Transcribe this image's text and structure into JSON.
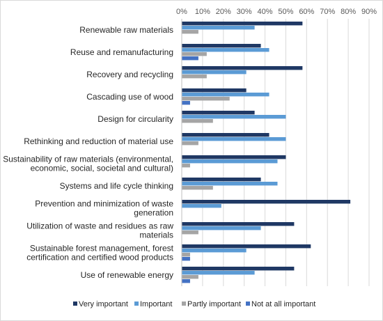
{
  "chart_data": {
    "type": "bar",
    "orientation": "horizontal",
    "categories": [
      [
        "Renewable raw materials"
      ],
      [
        "Reuse and remanufacturing"
      ],
      [
        "Recovery and recycling"
      ],
      [
        "Cascading use of wood"
      ],
      [
        "Design for circularity"
      ],
      [
        "Rethinking and reduction of material use"
      ],
      [
        "Sustainability of raw materials (environmental,",
        "economic, social, societal and cultural)"
      ],
      [
        "Systems and life cycle thinking"
      ],
      [
        "Prevention and minimization of waste",
        "generation"
      ],
      [
        "Utilization of waste and residues as raw",
        "materials"
      ],
      [
        "Sustainable forest management, forest",
        "certification and certified wood products"
      ],
      [
        "Use of renewable energy"
      ]
    ],
    "series": [
      {
        "name": "Very important",
        "color": "#1f3864",
        "values": [
          58,
          38,
          58,
          31,
          35,
          42,
          50,
          38,
          81,
          54,
          62,
          54
        ]
      },
      {
        "name": "Important",
        "color": "#5b9bd5",
        "values": [
          35,
          42,
          31,
          42,
          50,
          50,
          46,
          46,
          19,
          38,
          31,
          35
        ]
      },
      {
        "name": "Partly important",
        "color": "#a5a5a5",
        "values": [
          8,
          12,
          12,
          23,
          15,
          8,
          4,
          15,
          0,
          8,
          4,
          8
        ]
      },
      {
        "name": "Not at all important",
        "color": "#4472c4",
        "values": [
          0,
          8,
          0,
          4,
          0,
          0,
          0,
          0,
          0,
          0,
          4,
          4
        ]
      }
    ],
    "xlim": [
      0,
      90
    ],
    "xticks": [
      "0%",
      "10%",
      "20%",
      "30%",
      "40%",
      "50%",
      "60%",
      "70%",
      "80%",
      "90%"
    ],
    "xaxis_position": "top",
    "grid": true,
    "legend_position": "bottom"
  }
}
